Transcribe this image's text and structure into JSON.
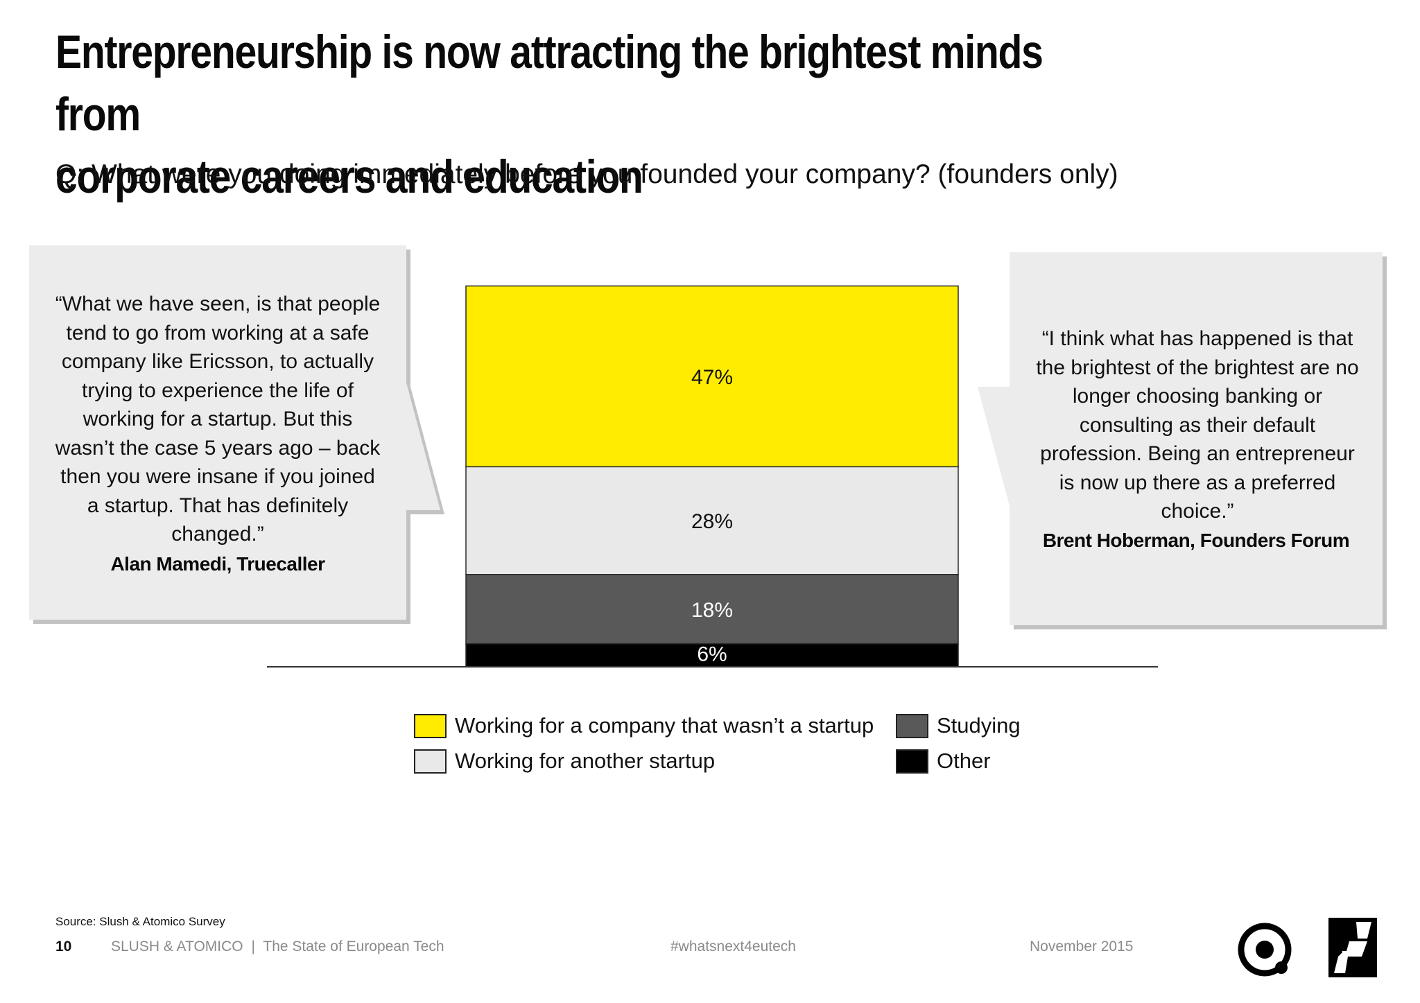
{
  "header": {
    "title_line1": "Entrepreneurship is now attracting the brightest minds from",
    "title_line2": "corporate careers and education",
    "subtitle": "Q: What were you doing immediately before you founded your company? (founders only)"
  },
  "quotes": {
    "left": {
      "text": "“What we have seen, is that people tend to go from working at a safe company like Ericsson, to actually trying to experience the life of working for a startup. But this wasn’t the case 5 years ago – back then you were insane if you joined a startup. That has definitely changed.”",
      "author": "Alan Mamedi, Truecaller"
    },
    "right": {
      "text": "“I think what has happened is that the brightest of the brightest are no longer choosing banking or consulting as their default profession. Being an entrepreneur is now up there as a preferred choice.”",
      "author": "Brent Hoberman, Founders Forum"
    }
  },
  "chart_data": {
    "type": "bar",
    "stacked": true,
    "categories": [
      ""
    ],
    "unit": "%",
    "series": [
      {
        "name": "Working for a company that wasn’t a startup",
        "values": [
          47
        ],
        "color": "#ffec00",
        "label_color": "#111111"
      },
      {
        "name": "Working for another startup",
        "values": [
          28
        ],
        "color": "#e9e9e9",
        "label_color": "#111111"
      },
      {
        "name": "Studying",
        "values": [
          18
        ],
        "color": "#595959",
        "label_color": "#ffffff"
      },
      {
        "name": "Other",
        "values": [
          6
        ],
        "color": "#000000",
        "label_color": "#ffffff"
      }
    ],
    "data_labels": [
      "47%",
      "28%",
      "18%",
      "6%"
    ],
    "legend_position": "bottom",
    "grid": false
  },
  "legend": {
    "items": [
      {
        "label": "Working for a company that wasn’t a startup",
        "color": "#ffec00"
      },
      {
        "label": "Studying",
        "color": "#595959"
      },
      {
        "label": "Working for another startup",
        "color": "#e9e9e9"
      },
      {
        "label": "Other",
        "color": "#000000"
      }
    ]
  },
  "footer": {
    "source": "Source: Slush & Atomico Survey",
    "page_number": "10",
    "publisher": "SLUSH & ATOMICO",
    "separator": "|",
    "publication": "The State of European Tech",
    "hashtag": "#whatsnext4eutech",
    "date": "November 2015"
  },
  "logos": {
    "left_icon": "atomico-logo-icon",
    "right_icon": "slush-logo-icon"
  }
}
